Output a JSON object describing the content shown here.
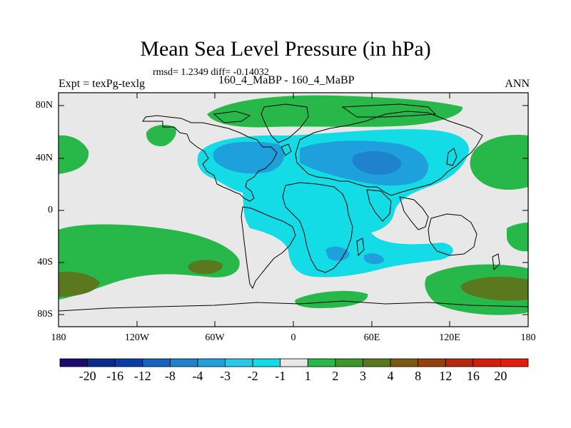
{
  "title": "Mean Sea Level Pressure (in hPa)",
  "stats": "rmsd= 1.2349 diff= -0.14032",
  "expt_label": "Expt = texPg-texlg",
  "comparison_label": "160_4_MaBP - 160_4_MaBP",
  "season_label": "ANN",
  "lat_ticks": [
    "80N",
    "40N",
    "0",
    "40S",
    "80S"
  ],
  "lon_ticks": [
    "180",
    "120W",
    "60W",
    "0",
    "60E",
    "120E",
    "180"
  ],
  "colorbar": {
    "labels": [
      "-20",
      "-16",
      "-12",
      "-8",
      "-4",
      "-3",
      "-2",
      "-1",
      "1",
      "2",
      "3",
      "4",
      "8",
      "12",
      "16",
      "20"
    ],
    "colors": [
      "#1a0a6e",
      "#0a2a8c",
      "#0a3ca8",
      "#1464c0",
      "#1e82cc",
      "#1ea0dc",
      "#28c8e6",
      "#14dce6",
      "#e8e8e8",
      "#28b84a",
      "#3c9628",
      "#5a781e",
      "#7a5a10",
      "#964010",
      "#b42810",
      "#d21e0a",
      "#e01e0a"
    ]
  },
  "colors": {
    "background_field": "#e8e8e8",
    "green": "#28b84a",
    "dark_green": "#5a781e",
    "cyan": "#14dce6",
    "light_blue": "#28c8e6",
    "mid_blue": "#1ea0dc",
    "frame": "#000000"
  }
}
